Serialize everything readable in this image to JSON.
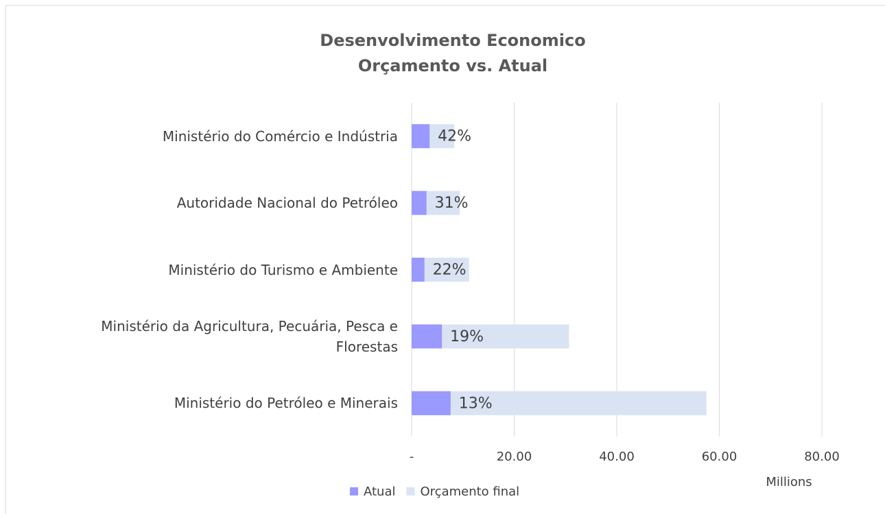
{
  "chart_data": {
    "type": "bar",
    "orientation": "horizontal",
    "overlap": true,
    "title": "Desenvolvimento Economico",
    "subtitle": "Orçamento vs. Atual",
    "categories": [
      "Ministério do Comércio e Indústria",
      "Autoridade Nacional do Petróleo",
      "Ministério do Turismo e Ambiente",
      "Ministério da Agricultura, Pecuária, Pesca e Florestas",
      "Ministério do Petróleo e Minerais"
    ],
    "series": [
      {
        "name": "Orçamento final",
        "color": "#dae3f3",
        "values": [
          8.3,
          9.4,
          11.2,
          30.7,
          57.5
        ]
      },
      {
        "name": "Atual",
        "color": "#9999ff",
        "values": [
          3.5,
          2.9,
          2.5,
          5.9,
          7.6
        ]
      }
    ],
    "data_labels": [
      "42%",
      "31%",
      "22%",
      "19%",
      "13%"
    ],
    "xlim": [
      0,
      80
    ],
    "xticks": [
      {
        "value": 0,
        "label": "-"
      },
      {
        "value": 20,
        "label": "20.00"
      },
      {
        "value": 40,
        "label": "40.00"
      },
      {
        "value": 60,
        "label": "60.00"
      },
      {
        "value": 80,
        "label": "80.00"
      }
    ],
    "x_unit_label": "Millions",
    "legend_order": [
      1,
      0
    ],
    "legend": "bottom",
    "grid": true
  }
}
